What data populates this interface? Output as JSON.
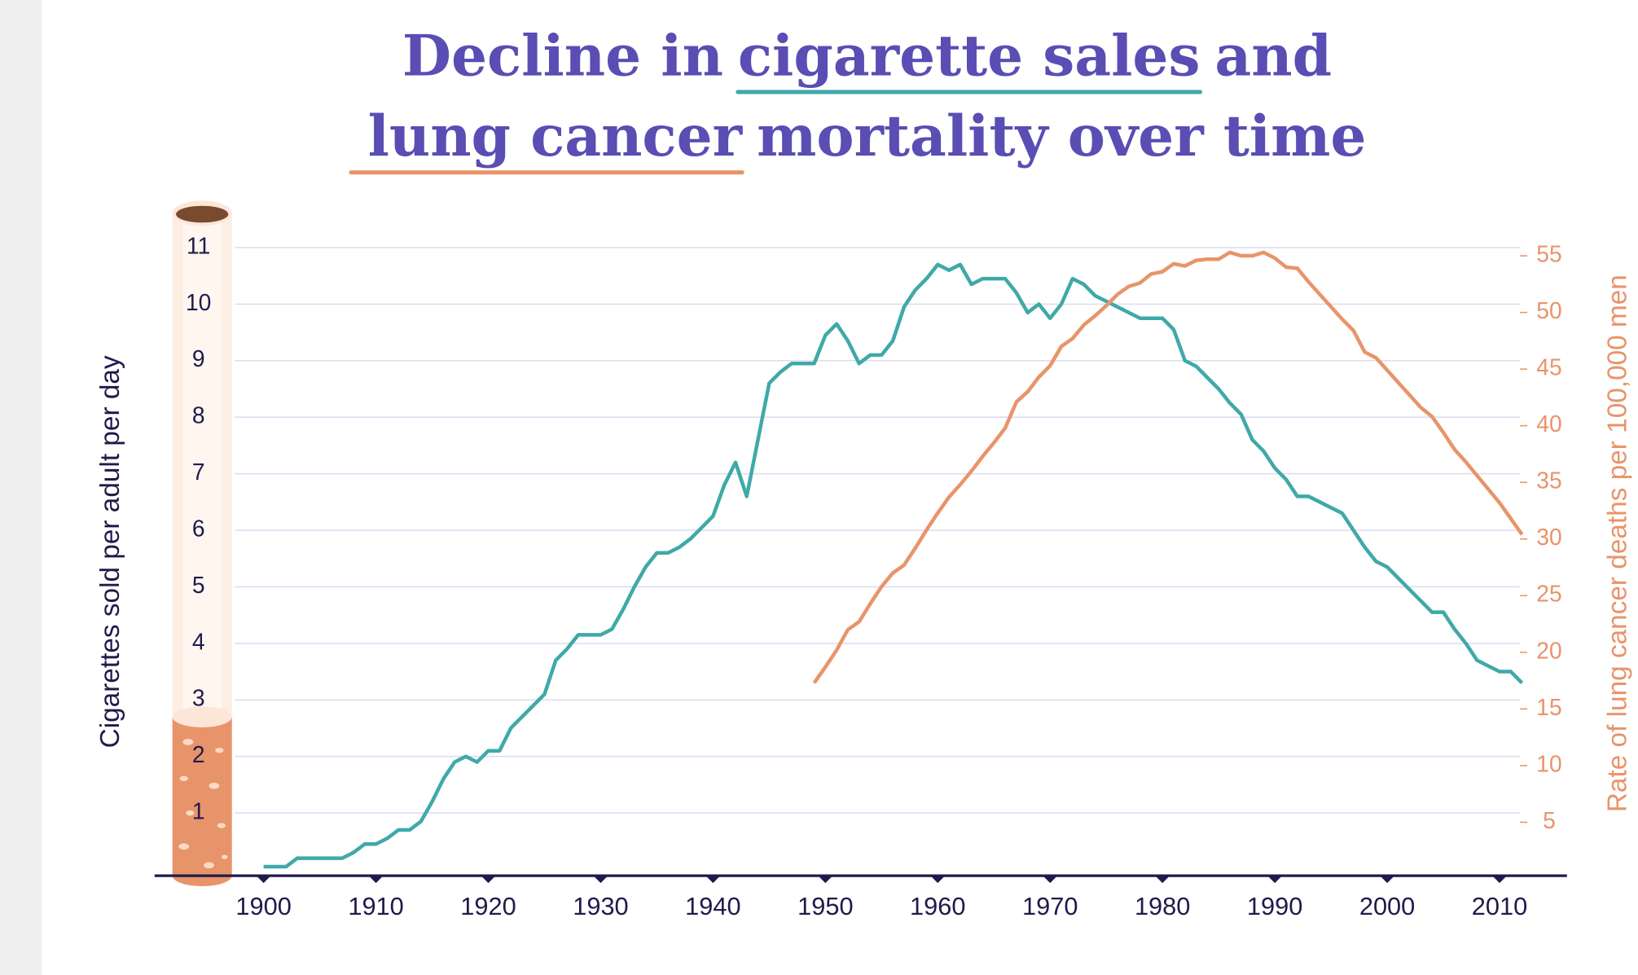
{
  "chart_data": {
    "type": "line",
    "title": [
      "Decline in",
      "cigarette sales",
      "and",
      "lung cancer",
      "mortality over time"
    ],
    "ylabel": "Cigarettes sold per adult per day",
    "y2label": "Rate of lung cancer deaths per 100,000 men",
    "x": [
      1900,
      1901,
      1902,
      1903,
      1904,
      1905,
      1906,
      1907,
      1908,
      1909,
      1910,
      1911,
      1912,
      1913,
      1914,
      1915,
      1916,
      1917,
      1918,
      1919,
      1920,
      1921,
      1922,
      1923,
      1924,
      1925,
      1926,
      1927,
      1928,
      1929,
      1930,
      1931,
      1932,
      1933,
      1934,
      1935,
      1936,
      1937,
      1938,
      1939,
      1940,
      1941,
      1942,
      1943,
      1944,
      1945,
      1946,
      1947,
      1948,
      1949,
      1950,
      1951,
      1952,
      1953,
      1954,
      1955,
      1956,
      1957,
      1958,
      1959,
      1960,
      1961,
      1962,
      1963,
      1964,
      1965,
      1966,
      1967,
      1968,
      1969,
      1970,
      1971,
      1972,
      1973,
      1974,
      1975,
      1976,
      1977,
      1978,
      1979,
      1980,
      1981,
      1982,
      1983,
      1984,
      1985,
      1986,
      1987,
      1988,
      1989,
      1990,
      1991,
      1992,
      1993,
      1994,
      1995,
      1996,
      1997,
      1998,
      1999,
      2000,
      2001,
      2002,
      2003,
      2004,
      2005,
      2006,
      2007,
      2008,
      2009,
      2010,
      2011,
      2012
    ],
    "series": [
      {
        "name": "cigarette sales",
        "color": "#3fa9a8",
        "values": [
          0.05,
          0.05,
          0.05,
          0.2,
          0.2,
          0.2,
          0.2,
          0.2,
          0.3,
          0.45,
          0.45,
          0.55,
          0.7,
          0.7,
          0.85,
          1.2,
          1.6,
          1.9,
          2.0,
          1.9,
          2.1,
          2.1,
          2.5,
          2.7,
          2.9,
          3.1,
          3.7,
          3.9,
          4.15,
          4.15,
          4.15,
          4.25,
          4.6,
          5.0,
          5.35,
          5.6,
          5.6,
          5.7,
          5.85,
          6.05,
          6.25,
          6.8,
          7.2,
          6.6,
          7.6,
          8.6,
          8.8,
          8.95,
          8.95,
          8.95,
          9.45,
          9.65,
          9.35,
          8.95,
          9.1,
          9.1,
          9.35,
          9.95,
          10.25,
          10.45,
          10.7,
          10.6,
          10.7,
          10.35,
          10.45,
          10.45,
          10.45,
          10.2,
          9.85,
          10.0,
          9.75,
          10.0,
          10.45,
          10.35,
          10.15,
          10.05,
          9.95,
          9.85,
          9.75,
          9.75,
          9.75,
          9.55,
          9.0,
          8.9,
          8.7,
          8.5,
          8.25,
          8.05,
          7.6,
          7.4,
          7.1,
          6.9,
          6.6,
          6.6,
          6.5,
          6.4,
          6.3,
          6.0,
          5.7,
          5.45,
          5.35,
          5.15,
          4.95,
          4.75,
          4.55,
          4.55,
          4.25,
          4.0,
          3.7,
          3.6,
          3.5,
          3.5,
          3.3
        ]
      },
      {
        "name": "lung cancer",
        "color": "#e8946a",
        "axis": "y2",
        "values": [
          null,
          null,
          null,
          null,
          null,
          null,
          null,
          null,
          null,
          null,
          null,
          null,
          null,
          null,
          null,
          null,
          null,
          null,
          null,
          null,
          null,
          null,
          null,
          null,
          null,
          null,
          null,
          null,
          null,
          null,
          null,
          null,
          null,
          null,
          null,
          null,
          null,
          null,
          null,
          null,
          null,
          null,
          null,
          null,
          null,
          null,
          null,
          null,
          null,
          17.3,
          18.7,
          20.2,
          22.0,
          22.7,
          24.3,
          25.8,
          27.0,
          27.7,
          29.2,
          30.8,
          32.3,
          33.7,
          34.8,
          36.0,
          37.3,
          38.5,
          39.8,
          42.1,
          43.0,
          44.3,
          45.3,
          47.0,
          47.7,
          48.9,
          49.7,
          50.6,
          51.6,
          52.3,
          52.6,
          53.4,
          53.6,
          54.3,
          54.1,
          54.6,
          54.7,
          54.7,
          55.3,
          55.0,
          55.0,
          55.3,
          54.8,
          54.0,
          53.9,
          52.7,
          51.6,
          50.5,
          49.4,
          48.4,
          46.5,
          46.0,
          44.9,
          43.8,
          42.7,
          41.6,
          40.8,
          39.4,
          37.9,
          36.8,
          35.6,
          34.4,
          33.2,
          31.8,
          30.4
        ]
      }
    ],
    "xlim": [
      1890.3,
      2016
    ],
    "xticks": [
      1900,
      1910,
      1920,
      1930,
      1940,
      1950,
      1960,
      1970,
      1980,
      1990,
      2000,
      2010
    ],
    "ylim": [
      -0.11,
      11.59
    ],
    "yticks": [
      1,
      2,
      3,
      4,
      5,
      6,
      7,
      8,
      9,
      10,
      11
    ],
    "y2lim": [
      0.28,
      58.67
    ],
    "y2ticks": [
      5,
      10,
      15,
      20,
      25,
      30,
      35,
      40,
      45,
      50,
      55
    ],
    "grid": true
  }
}
